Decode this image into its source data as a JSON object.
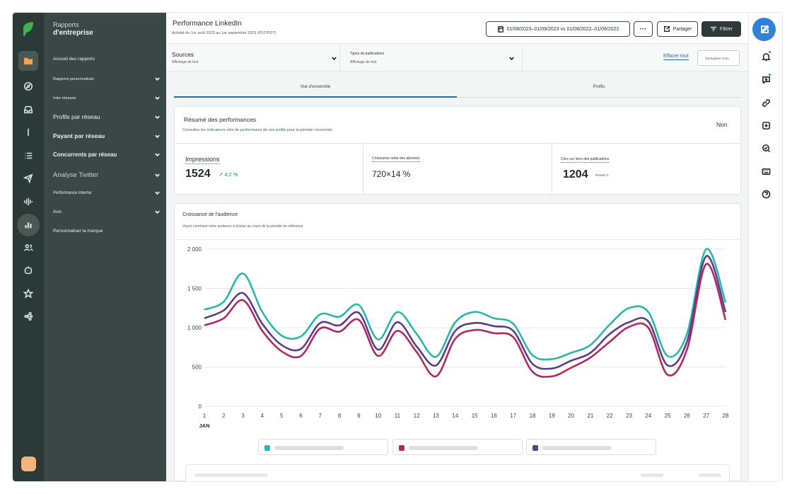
{
  "nav": {
    "title_line1": "Rapports",
    "title_line2": "d'entreprise",
    "items": [
      {
        "label": "Accueil des rapports",
        "has_chevron": false
      },
      {
        "label": "Rapports personnalisés",
        "has_chevron": true
      },
      {
        "label": "Inter-réseaux",
        "has_chevron": true
      },
      {
        "label": "Profils par réseau",
        "has_chevron": true
      },
      {
        "label": "Payant par réseau",
        "has_chevron": true
      },
      {
        "label": "Concurrents par réseau",
        "has_chevron": true
      },
      {
        "label": "Analyse Twitter",
        "has_chevron": true
      },
      {
        "label": "Performance interne",
        "has_chevron": true
      },
      {
        "label": "Avis",
        "has_chevron": true
      },
      {
        "label": "Personnaliser la marque",
        "has_chevron": false
      }
    ]
  },
  "rail_icons": [
    "folder-icon",
    "compass-icon",
    "inbox-icon",
    "pin-icon",
    "list-icon",
    "send-icon",
    "audio-icon",
    "reports-icon",
    "people-icon",
    "bot-icon",
    "star-icon",
    "network-icon"
  ],
  "header": {
    "title": "Performance LinkedIn",
    "subtitle": "Activité du 1er août 2023 au 1er septembre 2023 (PST/PDT)",
    "date_range": "01/08/2023–01/09/2023 vs 01/08/2022–01/09/2022",
    "more_label": "···",
    "share_label": "Partager",
    "filter_label": "Filtrer"
  },
  "filters": {
    "sources_label": "Sources",
    "sources_value": "Affichage de tout",
    "types_label": "Types de publications",
    "types_value": "Affichage de tout",
    "clear_label": "Effacer tout",
    "save_label": "Enregistrer sous..."
  },
  "tabs": [
    {
      "label": "Vue d'ensemble",
      "selected": true
    },
    {
      "label": "Profils",
      "selected": false
    }
  ],
  "summary": {
    "title": "Résumé des performances",
    "subtitle": "Consultez les indicateurs clés de performance de vos profils pour la période concernée.",
    "toggle_label": "Non",
    "metrics": [
      {
        "label": "Impressions",
        "value": "1524",
        "delta": "↗ 4,2 %"
      },
      {
        "label": "Croissance nette des abonnés",
        "value": "720×14 %",
        "delta": ""
      },
      {
        "label": "Clics sur liens des publications",
        "value": "1204",
        "delta": "Retrait %"
      }
    ]
  },
  "growth": {
    "title": "Croissance de l'audience",
    "subtitle": "Voyez comment votre audience a évolué au cours de la période de référence"
  },
  "chart_data": {
    "type": "line",
    "x": [
      1,
      2,
      3,
      4,
      5,
      6,
      7,
      8,
      9,
      10,
      11,
      12,
      13,
      14,
      15,
      16,
      17,
      18,
      19,
      20,
      21,
      22,
      23,
      24,
      25,
      26,
      27,
      28
    ],
    "x_month_label": "JAN",
    "ylim": [
      0,
      2000
    ],
    "yticks": [
      0,
      500,
      1000,
      1500,
      2000
    ],
    "ytick_labels": [
      "0",
      "500",
      "1 000",
      "1 500",
      "2 000"
    ],
    "grid": true,
    "series": [
      {
        "color": "#2bb7a6",
        "values": [
          1230,
          1330,
          1690,
          1200,
          900,
          890,
          1170,
          1140,
          1290,
          850,
          1200,
          920,
          630,
          1070,
          1200,
          1120,
          1050,
          650,
          600,
          680,
          780,
          1040,
          1250,
          1200,
          640,
          920,
          2000,
          1320
        ]
      },
      {
        "color": "#573f8a",
        "values": [
          1120,
          1220,
          1440,
          1050,
          780,
          730,
          1060,
          1030,
          1190,
          720,
          1070,
          760,
          520,
          960,
          1060,
          1020,
          960,
          540,
          480,
          580,
          680,
          920,
          1070,
          1080,
          520,
          820,
          1910,
          1200
        ]
      },
      {
        "color": "#b3285f",
        "values": [
          1030,
          1120,
          1350,
          960,
          700,
          640,
          990,
          950,
          1100,
          640,
          960,
          690,
          380,
          860,
          970,
          930,
          880,
          440,
          380,
          490,
          620,
          820,
          1010,
          1000,
          400,
          720,
          1810,
          1100
        ]
      }
    ]
  }
}
